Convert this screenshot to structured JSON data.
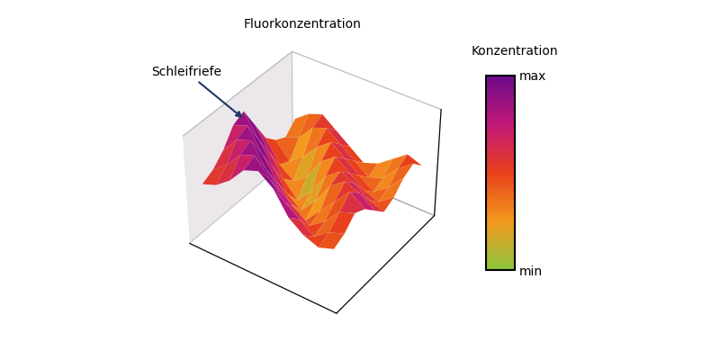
{
  "chart_data": {
    "type": "surface",
    "title": "Fluorkonzentration",
    "annotations": [
      {
        "text": "Schleifriefe"
      }
    ],
    "colorbar_title": "Konzentration",
    "colors": [
      "#8cc63f",
      "#f39a1e",
      "#e8401c",
      "#c2187a",
      "#6a0a8a"
    ],
    "colorbar_range": [
      0,
      1
    ],
    "colorbar_ticks": [
      {
        "value": 0,
        "label": "min"
      },
      {
        "value": 1,
        "label": "max"
      }
    ],
    "zlim": [
      0,
      1
    ],
    "tick_labels": false,
    "cells": [
      [
        0.55,
        0.6,
        0.7,
        0.85,
        0.9,
        0.8,
        0.6,
        0.5,
        0.45,
        0.5
      ],
      [
        0.6,
        0.7,
        0.85,
        0.9,
        0.75,
        0.6,
        0.5,
        0.4,
        0.5,
        0.55
      ],
      [
        0.7,
        0.85,
        0.9,
        0.7,
        0.55,
        0.45,
        0.35,
        0.45,
        0.6,
        0.65
      ],
      [
        0.85,
        0.9,
        0.7,
        0.5,
        0.35,
        0.25,
        0.4,
        0.55,
        0.7,
        0.6
      ],
      [
        0.9,
        0.7,
        0.5,
        0.3,
        0.2,
        0.35,
        0.55,
        0.65,
        0.6,
        0.5
      ],
      [
        0.7,
        0.5,
        0.3,
        0.15,
        0.3,
        0.5,
        0.6,
        0.55,
        0.45,
        0.4
      ],
      [
        0.5,
        0.3,
        0.2,
        0.3,
        0.5,
        0.6,
        0.5,
        0.4,
        0.35,
        0.45
      ],
      [
        0.4,
        0.25,
        0.35,
        0.5,
        0.6,
        0.5,
        0.4,
        0.3,
        0.4,
        0.55
      ],
      [
        0.35,
        0.4,
        0.55,
        0.6,
        0.5,
        0.4,
        0.3,
        0.35,
        0.5,
        0.6
      ],
      [
        0.45,
        0.55,
        0.6,
        0.5,
        0.4,
        0.3,
        0.35,
        0.45,
        0.55,
        0.5
      ]
    ]
  }
}
